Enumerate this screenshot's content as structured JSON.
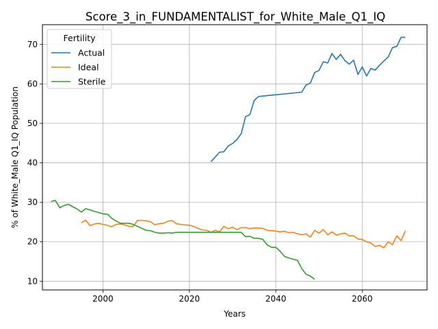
{
  "chart_data": {
    "type": "line",
    "title": "Score_3_in_FUNDAMENTALIST_for_White_Male_Q1_IQ",
    "xlabel": "Years",
    "ylabel": "% of White_Male Q1_IQ Population",
    "xlim": [
      1986,
      2075
    ],
    "ylim": [
      7.8,
      75
    ],
    "xticks": [
      2000,
      2020,
      2040,
      2060
    ],
    "yticks": [
      10,
      20,
      30,
      40,
      50,
      60,
      70
    ],
    "grid": true,
    "legend": {
      "title": "Fertility",
      "position": "top-left"
    },
    "series": [
      {
        "name": "Actual",
        "color": "#1f77b4",
        "x": [
          2025,
          2026,
          2027,
          2028,
          2029,
          2030,
          2031,
          2032,
          2033,
          2034,
          2035,
          2036,
          2046,
          2047,
          2048,
          2049,
          2050,
          2051,
          2052,
          2053,
          2054,
          2055,
          2056,
          2057,
          2058,
          2059,
          2060,
          2061,
          2062,
          2063,
          2064,
          2065,
          2066,
          2067,
          2068,
          2069,
          2070
        ],
        "y": [
          40.3,
          41.5,
          42.7,
          42.8,
          44.3,
          44.9,
          45.9,
          47.4,
          51.7,
          52.2,
          55.8,
          56.8,
          57.9,
          59.7,
          60.2,
          62.9,
          63.4,
          65.6,
          65.3,
          67.7,
          66.2,
          67.5,
          65.9,
          65.0,
          66.0,
          62.4,
          64.3,
          62.0,
          63.9,
          63.5,
          64.7,
          65.8,
          66.8,
          69.2,
          69.5,
          71.8,
          71.8
        ]
      },
      {
        "name": "Ideal",
        "color": "#ff7f0e",
        "x": [
          1995,
          1996,
          1997,
          1998,
          1999,
          2000,
          2001,
          2002,
          2003,
          2004,
          2005,
          2006,
          2007,
          2008,
          2009,
          2010,
          2011,
          2012,
          2013,
          2014,
          2015,
          2016,
          2017,
          2018,
          2019,
          2020,
          2021,
          2022,
          2023,
          2024,
          2025,
          2026,
          2027,
          2028,
          2029,
          2030,
          2031,
          2032,
          2033,
          2034,
          2035,
          2036,
          2037,
          2038,
          2039,
          2040,
          2041,
          2042,
          2043,
          2044,
          2045,
          2046,
          2047,
          2048,
          2049,
          2050,
          2051,
          2052,
          2053,
          2054,
          2055,
          2056,
          2057,
          2058,
          2059,
          2060,
          2061,
          2062,
          2063,
          2064,
          2065,
          2066,
          2067,
          2068,
          2069,
          2070
        ],
        "y": [
          24.8,
          25.5,
          24.1,
          24.5,
          24.7,
          24.4,
          24.2,
          23.8,
          24.4,
          24.5,
          24.3,
          23.9,
          23.9,
          25.4,
          25.4,
          25.3,
          25.1,
          24.3,
          24.6,
          24.7,
          25.2,
          25.4,
          24.6,
          24.4,
          24.3,
          24.2,
          23.9,
          23.4,
          23.0,
          22.9,
          22.4,
          22.9,
          22.5,
          23.9,
          23.3,
          23.7,
          23.1,
          23.6,
          23.6,
          23.3,
          23.5,
          23.5,
          23.4,
          22.9,
          22.8,
          22.7,
          22.5,
          22.7,
          22.3,
          22.4,
          22.0,
          21.8,
          22.0,
          21.2,
          22.9,
          22.2,
          23.1,
          21.8,
          22.5,
          21.7,
          22.0,
          22.2,
          21.5,
          21.5,
          20.7,
          20.6,
          20.0,
          19.7,
          18.8,
          19.1,
          18.5,
          20.0,
          19.3,
          21.5,
          20.3,
          22.8
        ]
      },
      {
        "name": "Sterile",
        "color": "#2ca02c",
        "x": [
          1988,
          1989,
          1990,
          1991,
          1992,
          1993,
          1994,
          1995,
          1996,
          1997,
          1998,
          1999,
          2000,
          2001,
          2002,
          2003,
          2004,
          2005,
          2006,
          2007,
          2008,
          2009,
          2010,
          2011,
          2012,
          2013,
          2014,
          2015,
          2016,
          2017,
          2018,
          2019,
          2020,
          2021,
          2022,
          2023,
          2024,
          2025,
          2026,
          2027,
          2028,
          2029,
          2030,
          2031,
          2032,
          2033,
          2034,
          2035,
          2036,
          2037,
          2038,
          2039,
          2040,
          2041,
          2042,
          2043,
          2044,
          2045,
          2046,
          2047,
          2048,
          2049
        ],
        "y": [
          30.2,
          30.5,
          28.6,
          29.2,
          29.5,
          28.9,
          28.3,
          27.5,
          28.4,
          28.1,
          27.7,
          27.4,
          27.1,
          27.0,
          26.0,
          25.3,
          24.7,
          24.7,
          24.7,
          24.4,
          23.9,
          23.4,
          22.9,
          22.8,
          22.4,
          22.2,
          22.2,
          22.3,
          22.2,
          22.4,
          22.4,
          22.4,
          22.4,
          22.4,
          22.4,
          22.4,
          22.4,
          22.4,
          22.4,
          22.4,
          22.4,
          22.4,
          22.4,
          22.4,
          22.4,
          21.3,
          21.4,
          20.9,
          20.9,
          20.6,
          19.2,
          18.6,
          18.6,
          17.6,
          16.3,
          15.9,
          15.6,
          15.3,
          13.2,
          11.8,
          11.3,
          10.5
        ]
      }
    ]
  }
}
